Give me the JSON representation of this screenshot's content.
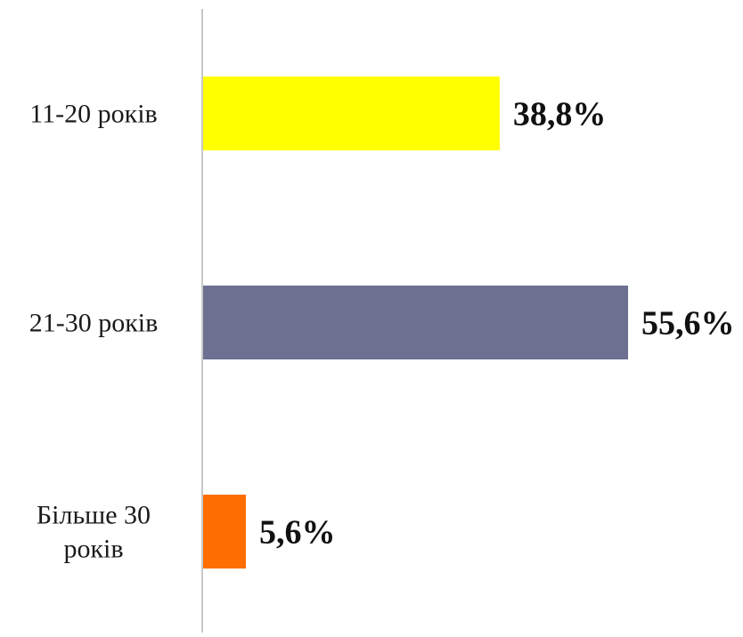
{
  "chart_data": {
    "type": "bar",
    "orientation": "horizontal",
    "title": "",
    "xlabel": "",
    "ylabel": "",
    "categories": [
      [
        "11-20 років"
      ],
      [
        "21-30 років"
      ],
      [
        "Більше 30",
        "років"
      ]
    ],
    "values": [
      38.8,
      55.6,
      5.6
    ],
    "value_labels": [
      "38,8%",
      "55,6%",
      "5,6%"
    ],
    "colors": [
      "#ffff00",
      "#6d7090",
      "#ff6e00"
    ],
    "xlim": [
      0,
      100
    ],
    "grid": false,
    "legend": "none"
  }
}
